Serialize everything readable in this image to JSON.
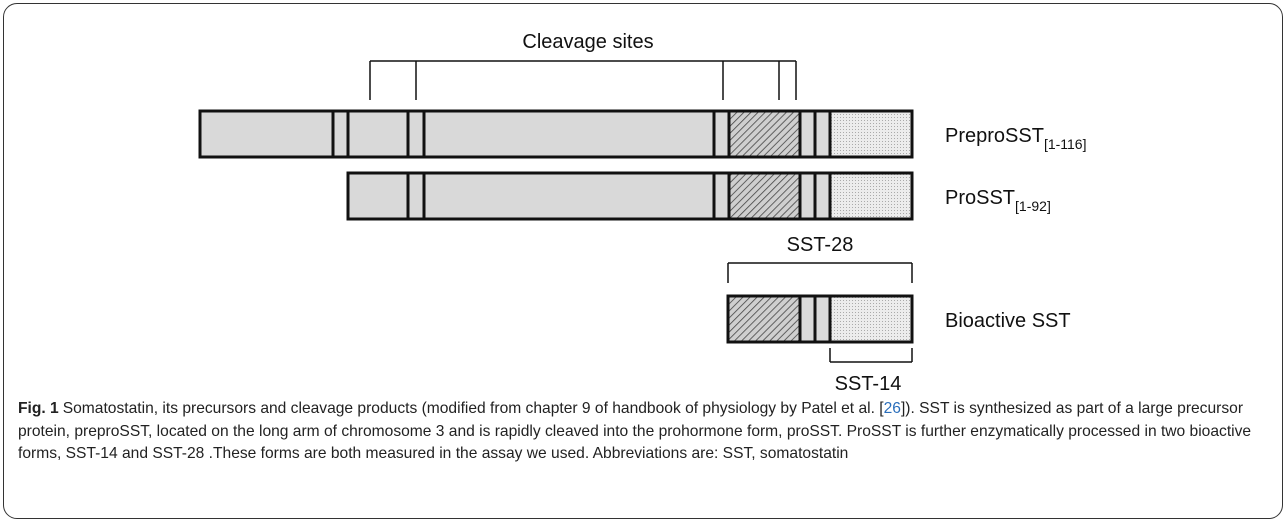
{
  "diagram": {
    "cleavage_label": "Cleavage sites",
    "preprosst": {
      "name": "PreproSST",
      "sub": "[1-116]"
    },
    "prosst": {
      "name": "ProSST",
      "sub": "[1-92]"
    },
    "sst28": "SST-28",
    "bioactive": "Bioactive SST",
    "sst14": "SST-14"
  },
  "caption": {
    "label": "Fig. 1",
    "text_before_ref": "Somatostatin, its precursors and cleavage products (modified from chapter 9 of handbook of physiology by Patel et al. [",
    "ref": "26",
    "text_after_ref": "]). SST is synthesized as part of a large precursor protein, preproSST, located on the long arm of chromosome 3 and is rapidly cleaved into the prohormone form, proSST. ProSST is further enzymatically processed in two bioactive forms, SST-14 and SST-28 .These forms are both measured in the assay we used. Abbreviations are: SST, somatostatin"
  }
}
